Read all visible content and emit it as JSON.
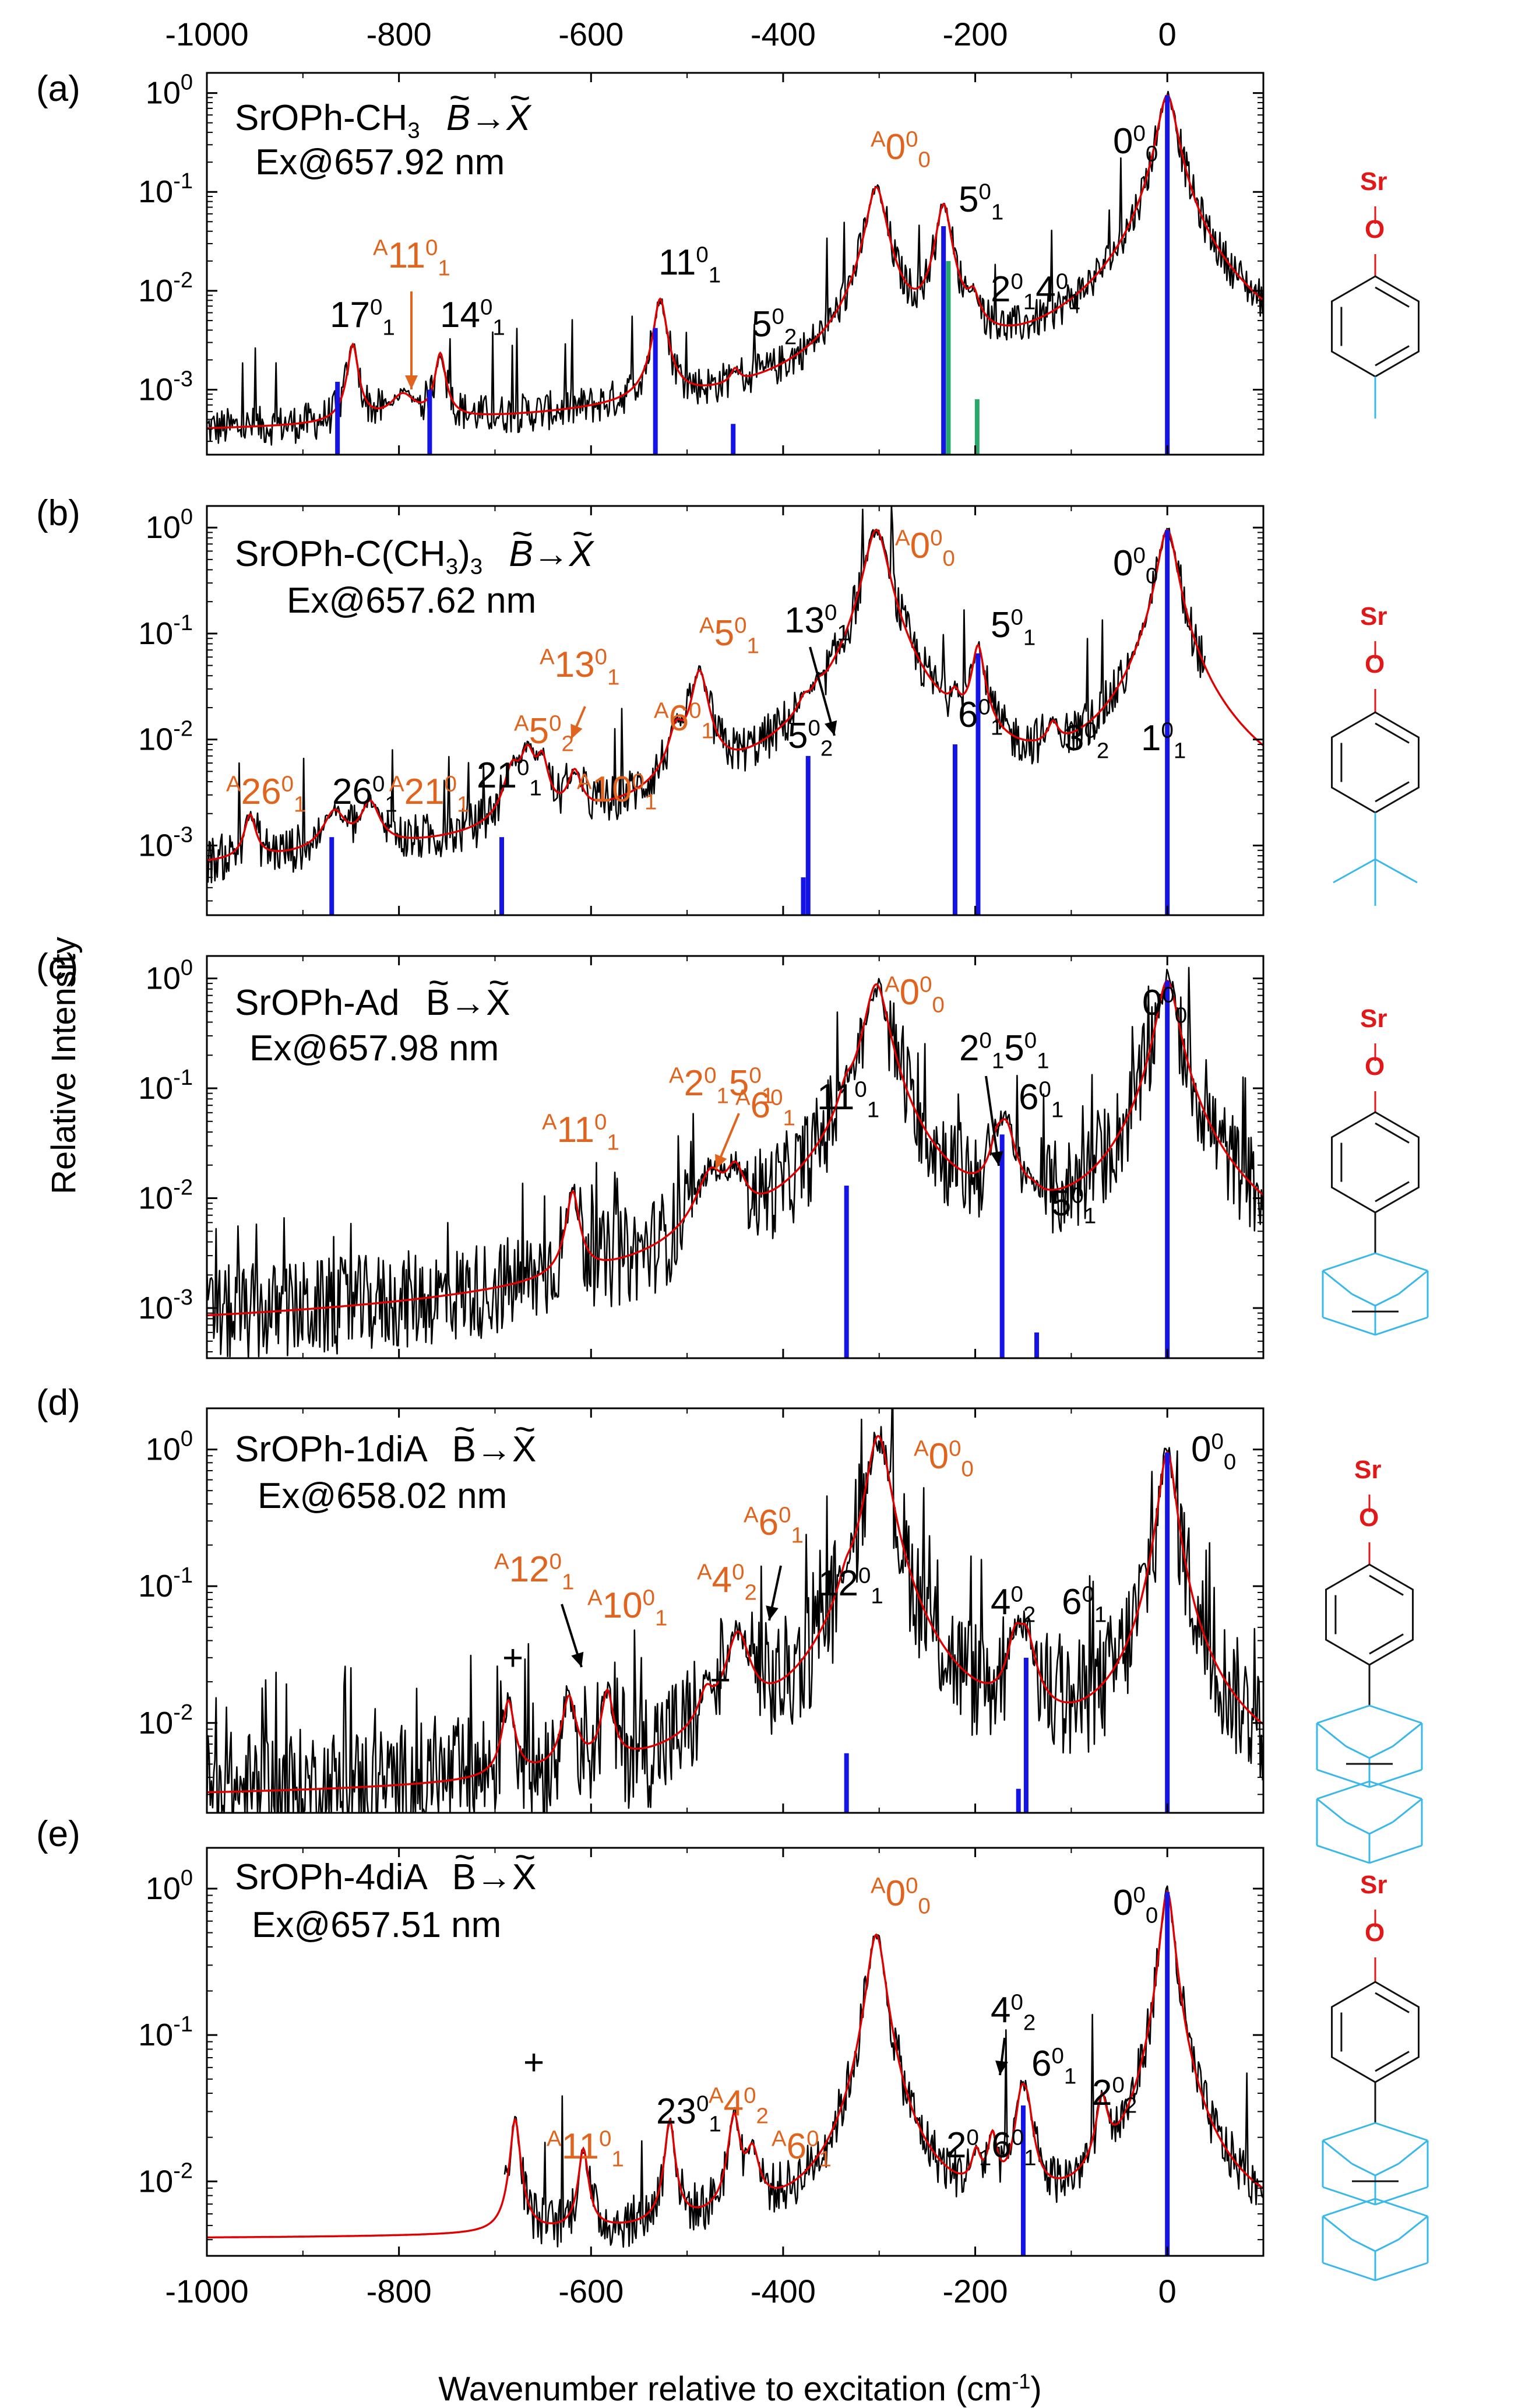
{
  "colors": {
    "experiment": "#000000",
    "fit": "#e00000",
    "stick": "#1414e6",
    "stick_alt": "#2aa86a",
    "label_orange": "#e0641e",
    "mol_red": "#e01818",
    "mol_cyan": "#3ab8e8",
    "axis": "#000000"
  },
  "figure": {
    "xlabel": "Wavenumber relative to excitation (cm",
    "xlabel_sup": "-1",
    "xlabel_close": ")",
    "ylabel": "Relative Intensity",
    "x_ticks": [
      "-1000",
      "-800",
      "-600",
      "-400",
      "-200",
      "0"
    ]
  },
  "panels": [
    {
      "letter": "(a)",
      "title_species": "SrOPh-CH",
      "title_sub": "3",
      "title_tilde": "~",
      "title_B": "B",
      "title_arrow": "→",
      "title_X": "X",
      "excitation": "Ex@657.92 nm",
      "y_ticks": [
        {
          "base": "10",
          "exp": "0"
        },
        {
          "base": "10",
          "exp": "-1"
        },
        {
          "base": "10",
          "exp": "-2"
        },
        {
          "base": "10",
          "exp": "-3"
        }
      ],
      "labels": [
        {
          "pre": "",
          "main": "0",
          "sup": "0",
          "sub": "0",
          "color": "black"
        },
        {
          "pre": "A",
          "main": "0",
          "sup": "0",
          "sub": "0",
          "color": "orange"
        },
        {
          "pre": "",
          "main": "5",
          "sup": "0",
          "sub": "1",
          "color": "black"
        },
        {
          "pre": "",
          "main": "2",
          "sup": "0",
          "sub": "1",
          "main2": "4",
          "sup2": "0",
          "sub2": "1",
          "color": "black"
        },
        {
          "pre": "",
          "main": "11",
          "sup": "0",
          "sub": "1",
          "color": "black"
        },
        {
          "pre": "",
          "main": "5",
          "sup": "0",
          "sub": "2",
          "color": "black"
        },
        {
          "pre": "",
          "main": "17",
          "sup": "0",
          "sub": "1",
          "color": "black"
        },
        {
          "pre": "A",
          "main": "11",
          "sup": "0",
          "sub": "1",
          "color": "orange"
        },
        {
          "pre": "",
          "main": "14",
          "sup": "0",
          "sub": "1",
          "color": "black"
        }
      ],
      "molecule": {
        "atom1": "Sr",
        "atom2": "O",
        "substituent": "methyl"
      }
    },
    {
      "letter": "(b)",
      "title_species": "SrOPh-C(CH",
      "title_sub": "3",
      "title_after": ")",
      "title_sub2": "3",
      "title_tilde": "~",
      "title_B": "B",
      "title_arrow": "→",
      "title_X": "X",
      "excitation": "Ex@657.62 nm",
      "y_ticks": [
        {
          "base": "10",
          "exp": "0"
        },
        {
          "base": "10",
          "exp": "-1"
        },
        {
          "base": "10",
          "exp": "-2"
        },
        {
          "base": "10",
          "exp": "-3"
        }
      ],
      "labels": [
        {
          "pre": "",
          "main": "0",
          "sup": "0",
          "sub": "0",
          "color": "black"
        },
        {
          "pre": "A",
          "main": "0",
          "sup": "0",
          "sub": "0",
          "color": "orange"
        },
        {
          "pre": "",
          "main": "5",
          "sup": "0",
          "sub": "1",
          "color": "black"
        },
        {
          "pre": "",
          "main": "6",
          "sup": "0",
          "sub": "1",
          "color": "black"
        },
        {
          "pre": "",
          "main": "3",
          "sup": "0",
          "sub": "2",
          "color": "black"
        },
        {
          "pre": "",
          "main": "1",
          "sup": "0",
          "sub": "1",
          "color": "black"
        },
        {
          "pre": "",
          "main": "13",
          "sup": "0",
          "sub": "1",
          "color": "black"
        },
        {
          "pre": "",
          "main": "5",
          "sup": "0",
          "sub": "2",
          "color": "black"
        },
        {
          "pre": "A",
          "main": "5",
          "sup": "0",
          "sub": "1",
          "color": "orange"
        },
        {
          "pre": "A",
          "main": "6",
          "sup": "0",
          "sub": "1",
          "color": "orange"
        },
        {
          "pre": "A",
          "main": "13",
          "sup": "0",
          "sub": "1",
          "color": "orange"
        },
        {
          "pre": "A",
          "main": "5",
          "sup": "0",
          "sub": "2",
          "color": "orange"
        },
        {
          "pre": "A",
          "main": "10",
          "sup": "0",
          "sub": "1",
          "color": "orange"
        },
        {
          "pre": "",
          "main": "21",
          "sup": "0",
          "sub": "1",
          "color": "black"
        },
        {
          "pre": "A",
          "main": "21",
          "sup": "0",
          "sub": "1",
          "color": "orange"
        },
        {
          "pre": "",
          "main": "26",
          "sup": "0",
          "sub": "1",
          "color": "black"
        },
        {
          "pre": "A",
          "main": "26",
          "sup": "0",
          "sub": "1",
          "color": "orange"
        }
      ],
      "molecule": {
        "atom1": "Sr",
        "atom2": "O",
        "substituent": "tert-butyl"
      }
    },
    {
      "letter": "(c)",
      "title_species": "SrOPh-Ad",
      "title_tilde": "~",
      "title_B": "B",
      "title_arrow": "→",
      "title_X": "X",
      "excitation": "Ex@657.98 nm",
      "y_ticks": [
        {
          "base": "10",
          "exp": "0"
        },
        {
          "base": "10",
          "exp": "-1"
        },
        {
          "base": "10",
          "exp": "-2"
        },
        {
          "base": "10",
          "exp": "-3"
        }
      ],
      "labels": [
        {
          "pre": "",
          "main": "0",
          "sup": "0",
          "sub": "0",
          "color": "black"
        },
        {
          "pre": "A",
          "main": "0",
          "sup": "0",
          "sub": "0",
          "color": "orange"
        },
        {
          "pre": "",
          "main": "2",
          "sup": "0",
          "sub": "1",
          "main2": "5",
          "sup2": "0",
          "sub2": "1",
          "color": "black"
        },
        {
          "pre": "",
          "main": "6",
          "sup": "0",
          "sub": "1",
          "color": "black"
        },
        {
          "pre": "",
          "main": "5",
          "sup": "0",
          "sub": "1",
          "color": "black"
        },
        {
          "pre": "",
          "main": "11",
          "sup": "0",
          "sub": "1",
          "color": "black"
        },
        {
          "pre": "A",
          "main": "2",
          "sup": "0",
          "sub": "1",
          "main2": "5",
          "sup2": "0",
          "sub2": "1",
          "color": "orange"
        },
        {
          "pre": "A",
          "main": "6",
          "sup": "0",
          "sub": "1",
          "color": "orange"
        },
        {
          "pre": "A",
          "main": "11",
          "sup": "0",
          "sub": "1",
          "color": "orange"
        }
      ],
      "molecule": {
        "atom1": "Sr",
        "atom2": "O",
        "substituent": "adamantyl"
      }
    },
    {
      "letter": "(d)",
      "title_species": "SrOPh-1diA",
      "title_tilde": "~",
      "title_B": "B",
      "title_arrow": "→",
      "title_X": "X",
      "excitation": "Ex@658.02 nm",
      "y_ticks": [
        {
          "base": "10",
          "exp": "0"
        },
        {
          "base": "10",
          "exp": "-1"
        },
        {
          "base": "10",
          "exp": "-2"
        }
      ],
      "labels": [
        {
          "pre": "",
          "main": "0",
          "sup": "0",
          "sub": "0",
          "color": "black"
        },
        {
          "pre": "A",
          "main": "0",
          "sup": "0",
          "sub": "0",
          "color": "orange"
        },
        {
          "pre": "",
          "main": "4",
          "sup": "0",
          "sub": "2",
          "color": "black"
        },
        {
          "pre": "",
          "main": "6",
          "sup": "0",
          "sub": "1",
          "color": "black"
        },
        {
          "pre": "",
          "main": "12",
          "sup": "0",
          "sub": "1",
          "color": "black"
        },
        {
          "pre": "A",
          "main": "6",
          "sup": "0",
          "sub": "1",
          "color": "orange"
        },
        {
          "pre": "A",
          "main": "4",
          "sup": "0",
          "sub": "2",
          "color": "orange"
        },
        {
          "pre": "A",
          "main": "10",
          "sup": "0",
          "sub": "1",
          "color": "orange"
        },
        {
          "pre": "A",
          "main": "12",
          "sup": "0",
          "sub": "1",
          "color": "orange"
        },
        {
          "pre": "",
          "main": "+",
          "color": "black"
        },
        {
          "pre": "",
          "main": "+",
          "color": "black"
        }
      ],
      "molecule": {
        "atom1": "Sr",
        "atom2": "O",
        "substituent": "1-diamantyl"
      }
    },
    {
      "letter": "(e)",
      "title_species": "SrOPh-4diA",
      "title_tilde": "~",
      "title_B": "B",
      "title_arrow": "→",
      "title_X": "X",
      "excitation": "Ex@657.51 nm",
      "y_ticks": [
        {
          "base": "10",
          "exp": "0"
        },
        {
          "base": "10",
          "exp": "-1"
        },
        {
          "base": "10",
          "exp": "-2"
        }
      ],
      "labels": [
        {
          "pre": "",
          "main": "0",
          "sup": "0",
          "sub": "0",
          "color": "black"
        },
        {
          "pre": "A",
          "main": "0",
          "sup": "0",
          "sub": "0",
          "color": "orange"
        },
        {
          "pre": "",
          "main": "4",
          "sup": "0",
          "sub": "2",
          "color": "black"
        },
        {
          "pre": "",
          "main": "6",
          "sup": "0",
          "sub": "1",
          "color": "black"
        },
        {
          "pre": "",
          "main": "2",
          "sup": "0",
          "sub": "2",
          "color": "black"
        },
        {
          "pre": "",
          "main": "2",
          "sup": "0",
          "sub": "1",
          "main2": "6",
          "sup2": "0",
          "sub2": "1",
          "color": "black"
        },
        {
          "pre": "",
          "main": "23",
          "sup": "0",
          "sub": "1",
          "color": "black"
        },
        {
          "pre": "A",
          "main": "4",
          "sup": "0",
          "sub": "2",
          "color": "orange"
        },
        {
          "pre": "A",
          "main": "6",
          "sup": "0",
          "sub": "1",
          "color": "orange"
        },
        {
          "pre": "A",
          "main": "11",
          "sup": "0",
          "sub": "1",
          "color": "orange"
        },
        {
          "pre": "",
          "main": "+",
          "color": "black"
        }
      ],
      "molecule": {
        "atom1": "Sr",
        "atom2": "O",
        "substituent": "4-diamantyl"
      }
    }
  ],
  "chart_data": [
    {
      "type": "line",
      "title": "(a) SrOPh-CH3 B→X, Ex@657.92 nm",
      "xlabel": "Wavenumber relative to excitation (cm-1)",
      "ylabel": "Relative Intensity",
      "yscale": "log",
      "xlim": [
        -1000,
        100
      ],
      "ylim": [
        0.00022,
        1.6
      ],
      "peaks": [
        {
          "x": 0,
          "y": 0.95,
          "w": 9
        },
        {
          "x": -303,
          "y": 0.11,
          "w": 9
        },
        {
          "x": -233,
          "y": 0.072,
          "w": 7
        },
        {
          "x": -202,
          "y": 0.0045,
          "w": 6
        },
        {
          "x": -528,
          "y": 0.0075,
          "w": 6
        },
        {
          "x": -450,
          "y": 0.00045,
          "w": 5
        },
        {
          "x": -848,
          "y": 0.0024,
          "w": 5
        },
        {
          "x": -796,
          "y": 0.0004,
          "w": 14
        },
        {
          "x": -757,
          "y": 0.0018,
          "w": 5
        }
      ],
      "baseline": 0.0003,
      "noise_level": 0.4,
      "sticks": [
        {
          "x": 0,
          "y": 0.95
        },
        {
          "x": -233,
          "y": 0.045
        },
        {
          "x": -228,
          "y": 0.02,
          "alt": true
        },
        {
          "x": -198,
          "y": 0.0008,
          "alt": true
        },
        {
          "x": -533,
          "y": 0.0042
        },
        {
          "x": -452,
          "y": 0.00045
        },
        {
          "x": -864,
          "y": 0.0012
        },
        {
          "x": -768,
          "y": 0.001
        }
      ]
    },
    {
      "type": "line",
      "title": "(b) SrOPh-C(CH3)3 B→X, Ex@657.62 nm",
      "xlabel": "Wavenumber relative to excitation (cm-1)",
      "ylabel": "Relative Intensity",
      "yscale": "log",
      "xlim": [
        -1000,
        100
      ],
      "ylim": [
        0.00022,
        1.6
      ],
      "peaks": [
        {
          "x": 0,
          "y": 0.95,
          "w": 9
        },
        {
          "x": -303,
          "y": 0.95,
          "w": 11
        },
        {
          "x": -197,
          "y": 0.065,
          "w": 6
        },
        {
          "x": -221,
          "y": 0.009,
          "w": 5
        },
        {
          "x": -119,
          "y": 0.0055,
          "w": 6
        },
        {
          "x": -28,
          "y": 0.005,
          "w": 10
        },
        {
          "x": -363,
          "y": 0.006,
          "w": 6
        },
        {
          "x": -378,
          "y": 0.0055,
          "w": 6
        },
        {
          "x": -487,
          "y": 0.04,
          "w": 8
        },
        {
          "x": -511,
          "y": 0.008,
          "w": 8
        },
        {
          "x": -666,
          "y": 0.006,
          "w": 8
        },
        {
          "x": -651,
          "y": 0.0045,
          "w": 6
        },
        {
          "x": -617,
          "y": 0.003,
          "w": 7
        },
        {
          "x": -682,
          "y": 0.0035,
          "w": 8
        },
        {
          "x": -830,
          "y": 0.0016,
          "w": 10
        },
        {
          "x": -867,
          "y": 0.0012,
          "w": 12
        },
        {
          "x": -955,
          "y": 0.0012,
          "w": 6
        }
      ],
      "baseline": 0.00035,
      "noise_level": 0.45,
      "sticks": [
        {
          "x": 0,
          "y": 0.95
        },
        {
          "x": -197,
          "y": 0.065
        },
        {
          "x": -221,
          "y": 0.009
        },
        {
          "x": -374,
          "y": 0.007
        },
        {
          "x": -379,
          "y": 0.0005
        },
        {
          "x": -693,
          "y": 0.0012
        },
        {
          "x": -870,
          "y": 0.0012
        }
      ]
    },
    {
      "type": "line",
      "title": "(c) SrOPh-Ad B→X, Ex@657.98 nm",
      "xlabel": "Wavenumber relative to excitation (cm-1)",
      "ylabel": "Relative Intensity",
      "yscale": "log",
      "xlim": [
        -1000,
        100
      ],
      "ylim": [
        0.00035,
        1.6
      ],
      "peaks": [
        {
          "x": 0,
          "y": 0.95,
          "w": 10
        },
        {
          "x": -303,
          "y": 0.88,
          "w": 11
        },
        {
          "x": -334,
          "y": 0.038,
          "w": 7
        },
        {
          "x": -168,
          "y": 0.035,
          "w": 9
        },
        {
          "x": -177,
          "y": 0.018,
          "w": 7
        },
        {
          "x": -140,
          "y": 0.0014,
          "w": 7
        },
        {
          "x": -475,
          "y": 0.0125,
          "w": 14
        },
        {
          "x": -450,
          "y": 0.0125,
          "w": 10
        },
        {
          "x": -619,
          "y": 0.0095,
          "w": 6
        }
      ],
      "baseline": 0.00052,
      "noise_level": 0.9,
      "sticks": [
        {
          "x": 0,
          "y": 0.95
        },
        {
          "x": -334,
          "y": 0.013
        },
        {
          "x": -172,
          "y": 0.038
        },
        {
          "x": -136,
          "y": 0.0006
        }
      ]
    },
    {
      "type": "line",
      "title": "(d) SrOPh-1diA B→X, Ex@658.02 nm",
      "xlabel": "Wavenumber relative to excitation (cm-1)",
      "ylabel": "Relative Intensity",
      "yscale": "log",
      "xlim": [
        -1000,
        100
      ],
      "ylim": [
        0.0022,
        2.0
      ],
      "peaks": [
        {
          "x": 0,
          "y": 0.95,
          "w": 8
        },
        {
          "x": -301,
          "y": 1.25,
          "w": 11
        },
        {
          "x": -334,
          "y": 0.035,
          "w": 8
        },
        {
          "x": -147,
          "y": 0.03,
          "w": 9
        },
        {
          "x": -158,
          "y": 0.028,
          "w": 8
        },
        {
          "x": -447,
          "y": 0.036,
          "w": 12
        },
        {
          "x": -480,
          "y": 0.007,
          "w": 8
        },
        {
          "x": -583,
          "y": 0.012,
          "w": 6
        },
        {
          "x": -623,
          "y": 0.011,
          "w": 7
        },
        {
          "x": -686,
          "y": 0.0105,
          "w": 6
        }
      ],
      "baseline": 0.0027,
      "noise_level": 0.9,
      "sticks": [
        {
          "x": 0,
          "y": 0.95
        },
        {
          "x": -334,
          "y": 0.006
        },
        {
          "x": -147,
          "y": 0.03
        },
        {
          "x": -155,
          "y": 0.0033
        }
      ]
    },
    {
      "type": "line",
      "title": "(e) SrOPh-4diA B→X, Ex@657.51 nm",
      "xlabel": "Wavenumber relative to excitation (cm-1)",
      "ylabel": "Relative Intensity",
      "yscale": "log",
      "xlim": [
        -1000,
        100
      ],
      "ylim": [
        0.0031,
        1.9
      ],
      "peaks": [
        {
          "x": 0,
          "y": 0.95,
          "w": 7
        },
        {
          "x": -303,
          "y": 0.48,
          "w": 9
        },
        {
          "x": -152,
          "y": 0.027,
          "w": 6
        },
        {
          "x": -146,
          "y": 0.02,
          "w": 6
        },
        {
          "x": -68,
          "y": 0.025,
          "w": 6
        },
        {
          "x": -182,
          "y": 0.012,
          "w": 5
        },
        {
          "x": -199,
          "y": 0.0068,
          "w": 5
        },
        {
          "x": -518,
          "y": 0.021,
          "w": 5
        },
        {
          "x": -451,
          "y": 0.022,
          "w": 6
        },
        {
          "x": -432,
          "y": 0.0095,
          "w": 7
        },
        {
          "x": -608,
          "y": 0.012,
          "w": 5
        },
        {
          "x": -679,
          "y": 0.022,
          "w": 5
        }
      ],
      "baseline": 0.004,
      "noise_level": 0.35,
      "signal_start": -690,
      "sticks": [
        {
          "x": 0,
          "y": 0.95
        },
        {
          "x": -150,
          "y": 0.033
        }
      ]
    }
  ]
}
